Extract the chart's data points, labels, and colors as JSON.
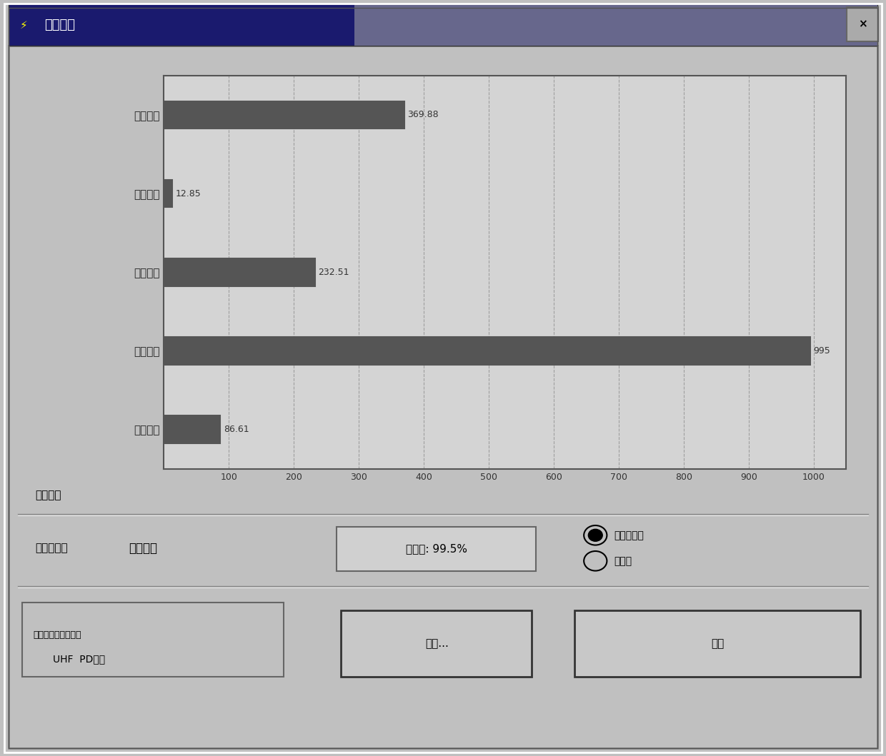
{
  "title": "识别结果",
  "categories": [
    "沿面放电",
    "内部放电",
    "针板放电",
    "悬浮放电",
    "气泡放电"
  ],
  "values": [
    86.61,
    995.0,
    232.51,
    12.85,
    369.88
  ],
  "x_ticks": [
    100,
    200,
    300,
    400,
    500,
    600,
    700,
    800,
    900,
    1000
  ],
  "xlim": [
    0,
    1050
  ],
  "bar_color": "#555555",
  "bar_height": 0.35,
  "bg_color": "#c0c0c0",
  "plot_bg": "#d4d4d4",
  "window_bg": "#c0c0c0",
  "title_bar_color": "#000080",
  "title_text_color": "#ffffff",
  "result_label": "识别结果",
  "discharge_type_label": "放电类型：",
  "discharge_type_value": "内部放电",
  "confidence_label": "可信度: 99.5%",
  "method1": "中心分类法",
  "method2": "概率法",
  "library_label": "当前使用的库文件：",
  "library_value": "UHF  PD检测",
  "btn_print": "打印...",
  "btn_close": "关闭",
  "close_btn": "×",
  "grid_color": "#888888",
  "font_size_bar": 9,
  "font_size_labels": 11,
  "font_size_title": 13
}
